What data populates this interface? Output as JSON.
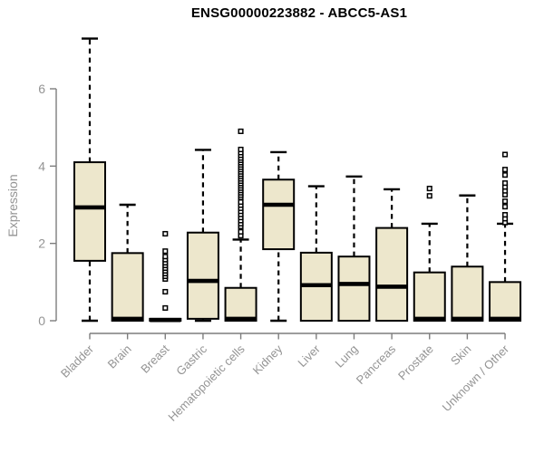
{
  "chart_data": {
    "type": "box",
    "title": "ENSG00000223882 - ABCC5-AS1",
    "ylabel": "Expression",
    "xlabel": "",
    "ylim": [
      0,
      7.45
    ],
    "yticks": [
      0,
      2,
      4,
      6
    ],
    "grid": false,
    "legend": false,
    "colors": {
      "box_fill": "#EDE7CC",
      "box_stroke": "#000000",
      "axis_line": "#7d7d7d",
      "axis_text": "#949494",
      "outlier_fill": "#ffffff"
    },
    "categories": [
      "Bladder",
      "Brain",
      "Breast",
      "Gastric",
      "Hematopoietic cells",
      "Kidney",
      "Liver",
      "Lung",
      "Pancreas",
      "Prostate",
      "Skin",
      "Unknown / Other"
    ],
    "series": [
      {
        "category": "Bladder",
        "min": 0,
        "q1": 1.55,
        "median": 2.93,
        "q3": 4.1,
        "max": 7.3,
        "outliers": []
      },
      {
        "category": "Brain",
        "min": 0,
        "q1": 0,
        "median": 0.05,
        "q3": 1.75,
        "max": 3.0,
        "outliers": []
      },
      {
        "category": "Breast",
        "min": 0,
        "q1": 0,
        "median": 0.02,
        "q3": 0.05,
        "max": 0.05,
        "outliers": [
          0.33,
          0.75,
          1.08,
          1.15,
          1.22,
          1.29,
          1.36,
          1.43,
          1.5,
          1.58,
          1.66,
          1.8,
          2.25
        ]
      },
      {
        "category": "Gastric",
        "min": 0,
        "q1": 0.05,
        "median": 1.03,
        "q3": 2.28,
        "max": 4.42,
        "outliers": []
      },
      {
        "category": "Hematopoietic cells",
        "min": 0,
        "q1": 0,
        "median": 0.05,
        "q3": 0.85,
        "max": 2.1,
        "outliers": [
          2.2,
          2.3,
          2.44,
          2.51,
          2.59,
          2.67,
          2.75,
          2.83,
          2.91,
          2.99,
          3.07,
          3.19,
          3.25,
          3.31,
          3.37,
          3.43,
          3.49,
          3.55,
          3.61,
          3.67,
          3.73,
          3.79,
          3.85,
          3.91,
          3.97,
          4.03,
          4.09,
          4.15,
          4.21,
          4.28,
          4.35,
          4.43,
          4.9
        ]
      },
      {
        "category": "Kidney",
        "min": 0,
        "q1": 1.85,
        "median": 3.0,
        "q3": 3.65,
        "max": 4.36,
        "outliers": []
      },
      {
        "category": "Liver",
        "min": 0,
        "q1": 0,
        "median": 0.92,
        "q3": 1.76,
        "max": 3.48,
        "outliers": []
      },
      {
        "category": "Lung",
        "min": 0,
        "q1": 0,
        "median": 0.95,
        "q3": 1.66,
        "max": 3.73,
        "outliers": []
      },
      {
        "category": "Pancreas",
        "min": 0,
        "q1": 0,
        "median": 0.88,
        "q3": 2.4,
        "max": 3.4,
        "outliers": []
      },
      {
        "category": "Prostate",
        "min": 0,
        "q1": 0,
        "median": 0.05,
        "q3": 1.25,
        "max": 2.51,
        "outliers": [
          3.23,
          3.42
        ]
      },
      {
        "category": "Skin",
        "min": 0,
        "q1": 0,
        "median": 0.05,
        "q3": 1.4,
        "max": 3.24,
        "outliers": []
      },
      {
        "category": "Unknown / Other",
        "min": 0,
        "q1": 0,
        "median": 0.05,
        "q3": 1.0,
        "max": 2.51,
        "outliers": [
          2.54,
          2.64,
          2.74,
          2.95,
          3.09,
          3.26,
          3.36,
          3.46,
          3.56,
          3.77,
          3.91,
          4.3
        ]
      }
    ]
  }
}
